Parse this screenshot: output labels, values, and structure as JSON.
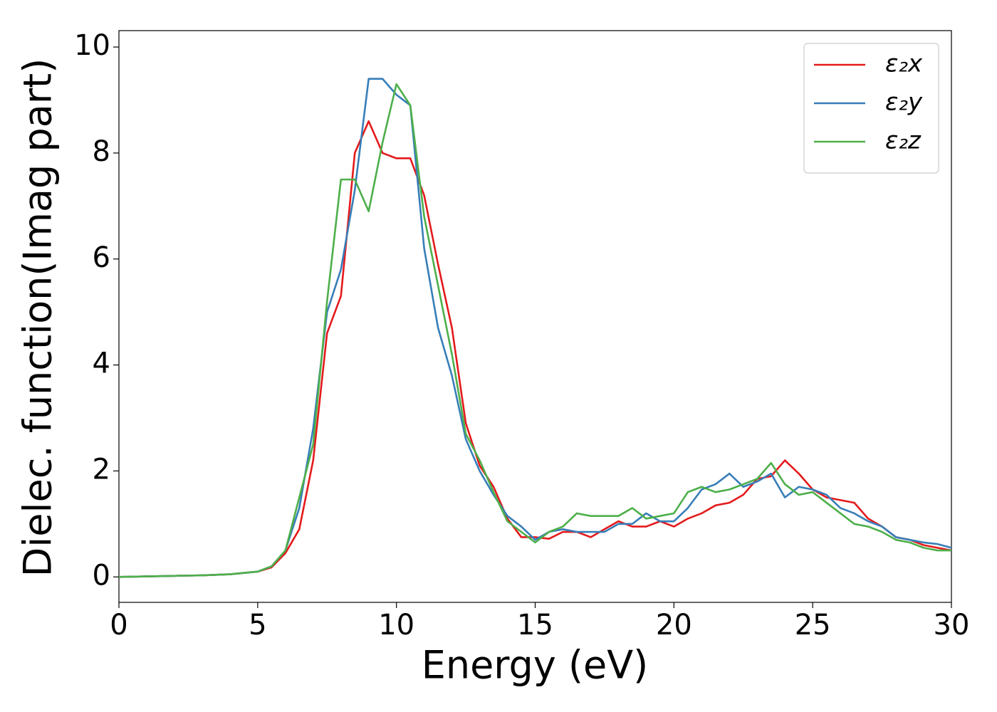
{
  "chart_data": {
    "type": "line",
    "x_label": "Energy (eV)",
    "y_label": "Dielec. function(Imag part)",
    "x": [
      0,
      1,
      2,
      3,
      4,
      5,
      5.5,
      6,
      6.5,
      7,
      7.5,
      8,
      8.5,
      9,
      9.5,
      10,
      10.5,
      11,
      11.5,
      12,
      12.5,
      13,
      13.5,
      14,
      14.5,
      15,
      15.5,
      16,
      16.5,
      17,
      17.5,
      18,
      18.5,
      19,
      19.5,
      20,
      20.5,
      21,
      21.5,
      22,
      22.5,
      23,
      23.5,
      24,
      24.5,
      25,
      25.5,
      26,
      26.5,
      27,
      27.5,
      28,
      28.5,
      29,
      29.5,
      30
    ],
    "series": [
      {
        "name": "ε₂x",
        "color": "#e41a1c",
        "values": [
          0,
          0.01,
          0.02,
          0.03,
          0.05,
          0.1,
          0.18,
          0.45,
          0.9,
          2.2,
          4.6,
          5.3,
          8.0,
          8.6,
          8.0,
          7.9,
          7.9,
          7.2,
          5.9,
          4.7,
          2.9,
          2.1,
          1.7,
          1.1,
          0.75,
          0.75,
          0.72,
          0.85,
          0.85,
          0.75,
          0.9,
          1.05,
          0.95,
          0.95,
          1.05,
          0.95,
          1.1,
          1.2,
          1.35,
          1.4,
          1.55,
          1.85,
          1.9,
          2.2,
          1.95,
          1.65,
          1.5,
          1.45,
          1.4,
          1.1,
          0.95,
          0.75,
          0.7,
          0.6,
          0.55,
          0.5
        ]
      },
      {
        "name": "ε₂y",
        "color": "#377eb8",
        "values": [
          0,
          0.01,
          0.02,
          0.03,
          0.05,
          0.1,
          0.2,
          0.5,
          1.3,
          2.8,
          5.0,
          5.8,
          7.3,
          9.4,
          9.4,
          9.1,
          8.9,
          6.2,
          4.7,
          3.8,
          2.6,
          2.0,
          1.55,
          1.15,
          0.95,
          0.7,
          0.85,
          0.9,
          0.85,
          0.85,
          0.85,
          1.0,
          1.0,
          1.2,
          1.05,
          1.05,
          1.3,
          1.65,
          1.75,
          1.95,
          1.7,
          1.8,
          1.95,
          1.5,
          1.7,
          1.65,
          1.55,
          1.3,
          1.2,
          1.05,
          0.95,
          0.75,
          0.7,
          0.65,
          0.62,
          0.55
        ]
      },
      {
        "name": "ε₂z",
        "color": "#4daf4a",
        "values": [
          0,
          0.01,
          0.02,
          0.03,
          0.05,
          0.1,
          0.2,
          0.5,
          1.5,
          2.5,
          5.2,
          7.5,
          7.5,
          6.9,
          8.2,
          9.3,
          8.9,
          6.8,
          5.5,
          4.2,
          2.7,
          2.2,
          1.6,
          1.05,
          0.85,
          0.65,
          0.85,
          0.95,
          1.2,
          1.15,
          1.15,
          1.15,
          1.3,
          1.1,
          1.15,
          1.2,
          1.6,
          1.7,
          1.6,
          1.65,
          1.75,
          1.85,
          2.15,
          1.75,
          1.55,
          1.6,
          1.4,
          1.2,
          1.0,
          0.95,
          0.85,
          0.7,
          0.65,
          0.55,
          0.5,
          0.5
        ]
      }
    ],
    "xlim": [
      0,
      30
    ],
    "xticks": [
      0,
      5,
      10,
      15,
      20,
      25,
      30
    ],
    "ylim": [
      -0.48,
      10.31
    ],
    "yticks": [
      0,
      2,
      4,
      6,
      8,
      10
    ],
    "legend": "upper right"
  }
}
